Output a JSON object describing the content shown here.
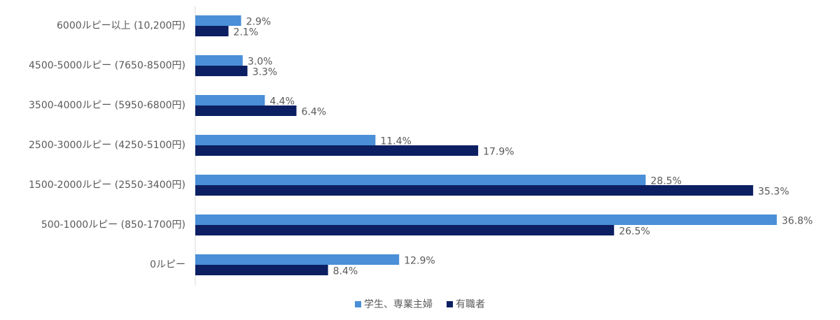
{
  "chart_data": {
    "type": "bar",
    "orientation": "horizontal",
    "categories": [
      "6000ルピー以上 (10,200円)",
      "4500-5000ルピー (7650-8500円)",
      "3500-4000ルピー (5950-6800円)",
      "2500-3000ルピー (4250-5100円)",
      "1500-2000ルピー (2550-3400円)",
      "500-1000ルピー (850-1700円)",
      "0ルピー"
    ],
    "series": [
      {
        "name": "学生、専業主婦",
        "color": "#4a8fd8",
        "values": [
          2.9,
          3.0,
          4.4,
          11.4,
          28.5,
          36.8,
          12.9
        ],
        "value_labels": [
          "2.9%",
          "3.0%",
          "4.4%",
          "11.4%",
          "28.5%",
          "36.8%",
          "12.9%"
        ]
      },
      {
        "name": "有職者",
        "color": "#0c1f62",
        "values": [
          2.1,
          3.3,
          6.4,
          17.9,
          35.3,
          26.5,
          8.4
        ],
        "value_labels": [
          "2.1%",
          "3.3%",
          "6.4%",
          "17.9%",
          "35.3%",
          "26.5%",
          "8.4%"
        ]
      }
    ],
    "xlim": [
      0,
      40
    ],
    "legend": "bottom"
  }
}
